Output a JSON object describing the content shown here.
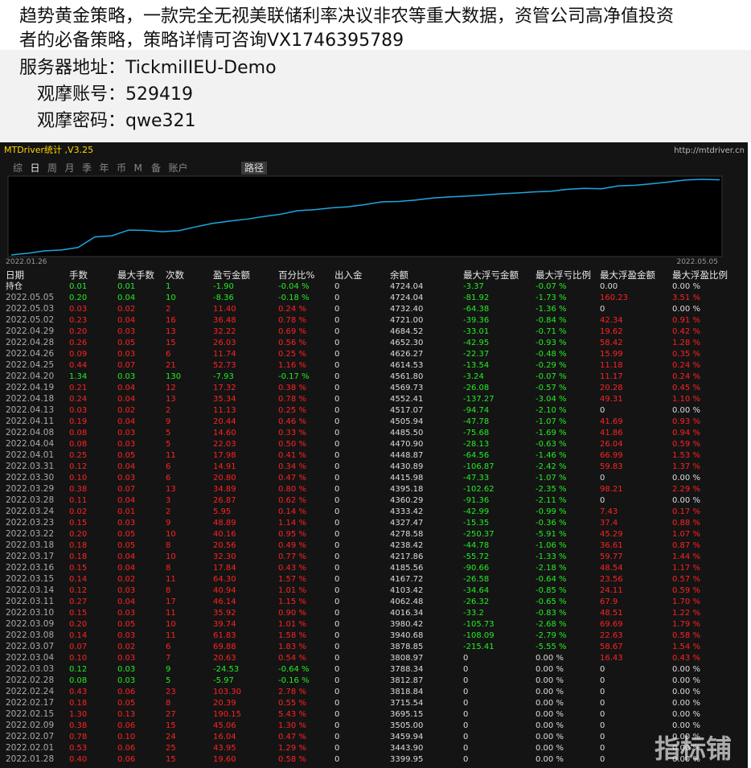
{
  "header": {
    "lines": [
      "趋势黄金策略，一款完全无视美联储利率决议非农等重大数据，资管公司高净值投资",
      "者的必备策略，策略详情可咨询VX1746395789",
      "服务器地址：TickmiIIEU-Demo",
      "观摩账号：529419",
      "观摩密码：qwe321"
    ]
  },
  "panel": {
    "title": "MTDriver统计 ,V3.25",
    "url": "http://mtdriver.cn",
    "tabs": [
      "综",
      "日",
      "周",
      "月",
      "季",
      "年",
      "币",
      "M",
      "备",
      "账户"
    ],
    "active_tab": "路径"
  },
  "chart": {
    "start_label": "2022.01.26",
    "end_label": "2022.05.05"
  },
  "table": {
    "header": [
      "日期",
      "手数",
      "最大手数",
      "次数",
      "盈亏金额",
      "百分比%",
      "出入金",
      "余额",
      "最大浮亏金额",
      "最大浮亏比例",
      "最大浮盈金额",
      "最大浮盈比例"
    ],
    "rows": [
      [
        "持仓",
        "0.01",
        "0.01",
        "1",
        "-1.90",
        "-0.04 %",
        "0",
        "4724.04",
        "-3.37",
        "-0.07 %",
        "0.00",
        "0.00 %"
      ],
      [
        "2022.05.05",
        "0.20",
        "0.04",
        "10",
        "-8.36",
        "-0.18 %",
        "0",
        "4724.04",
        "-81.92",
        "-1.73 %",
        "160.23",
        "3.51 %"
      ],
      [
        "2022.05.03",
        "0.03",
        "0.02",
        "2",
        "11.40",
        "0.24 %",
        "0",
        "4732.40",
        "-64.38",
        "-1.36 %",
        "0",
        "0.00 %"
      ],
      [
        "2022.05.02",
        "0.23",
        "0.04",
        "16",
        "36.48",
        "0.78 %",
        "0",
        "4721.00",
        "-39.36",
        "-0.84 %",
        "42.34",
        "0.91 %"
      ],
      [
        "2022.04.29",
        "0.20",
        "0.03",
        "13",
        "32.22",
        "0.69 %",
        "0",
        "4684.52",
        "-33.01",
        "-0.71 %",
        "19.62",
        "0.42 %"
      ],
      [
        "2022.04.28",
        "0.26",
        "0.05",
        "15",
        "26.03",
        "0.56 %",
        "0",
        "4652.30",
        "-42.95",
        "-0.93 %",
        "58.42",
        "1.28 %"
      ],
      [
        "2022.04.26",
        "0.09",
        "0.03",
        "6",
        "11.74",
        "0.25 %",
        "0",
        "4626.27",
        "-22.37",
        "-0.48 %",
        "15.99",
        "0.35 %"
      ],
      [
        "2022.04.25",
        "0.44",
        "0.07",
        "21",
        "52.73",
        "1.16 %",
        "0",
        "4614.53",
        "-13.54",
        "-0.29 %",
        "11.18",
        "0.24 %"
      ],
      [
        "2022.04.20",
        "1.34",
        "0.03",
        "130",
        "-7.93",
        "-0.17 %",
        "0",
        "4561.80",
        "-3.24",
        "-0.07 %",
        "11.17",
        "0.24 %"
      ],
      [
        "2022.04.19",
        "0.21",
        "0.04",
        "12",
        "17.32",
        "0.38 %",
        "0",
        "4569.73",
        "-26.08",
        "-0.57 %",
        "20.28",
        "0.45 %"
      ],
      [
        "2022.04.18",
        "0.24",
        "0.04",
        "13",
        "35.34",
        "0.78 %",
        "0",
        "4552.41",
        "-137.27",
        "-3.04 %",
        "49.31",
        "1.10 %"
      ],
      [
        "2022.04.13",
        "0.03",
        "0.02",
        "2",
        "11.13",
        "0.25 %",
        "0",
        "4517.07",
        "-94.74",
        "-2.10 %",
        "0",
        "0.00 %"
      ],
      [
        "2022.04.11",
        "0.19",
        "0.04",
        "9",
        "20.44",
        "0.46 %",
        "0",
        "4505.94",
        "-47.78",
        "-1.07 %",
        "41.69",
        "0.93 %"
      ],
      [
        "2022.04.08",
        "0.08",
        "0.03",
        "5",
        "14.60",
        "0.33 %",
        "0",
        "4485.50",
        "-75.68",
        "-1.69 %",
        "41.86",
        "0.94 %"
      ],
      [
        "2022.04.04",
        "0.08",
        "0.03",
        "5",
        "22.03",
        "0.50 %",
        "0",
        "4470.90",
        "-28.13",
        "-0.63 %",
        "26.04",
        "0.59 %"
      ],
      [
        "2022.04.01",
        "0.25",
        "0.05",
        "11",
        "17.98",
        "0.41 %",
        "0",
        "4448.87",
        "-64.56",
        "-1.46 %",
        "66.99",
        "1.53 %"
      ],
      [
        "2022.03.31",
        "0.12",
        "0.04",
        "6",
        "14.91",
        "0.34 %",
        "0",
        "4430.89",
        "-106.87",
        "-2.42 %",
        "59.83",
        "1.37 %"
      ],
      [
        "2022.03.30",
        "0.10",
        "0.03",
        "6",
        "20.80",
        "0.47 %",
        "0",
        "4415.98",
        "-47.33",
        "-1.07 %",
        "0",
        "0.00 %"
      ],
      [
        "2022.03.29",
        "0.38",
        "0.07",
        "13",
        "34.89",
        "0.80 %",
        "0",
        "4395.18",
        "-102.62",
        "-2.35 %",
        "98.21",
        "2.29 %"
      ],
      [
        "2022.03.28",
        "0.11",
        "0.04",
        "3",
        "26.87",
        "0.62 %",
        "0",
        "4360.29",
        "-91.36",
        "-2.11 %",
        "0",
        "0.00 %"
      ],
      [
        "2022.03.24",
        "0.02",
        "0.01",
        "2",
        "5.95",
        "0.14 %",
        "0",
        "4333.42",
        "-42.99",
        "-0.99 %",
        "7.43",
        "0.17 %"
      ],
      [
        "2022.03.23",
        "0.15",
        "0.03",
        "9",
        "48.89",
        "1.14 %",
        "0",
        "4327.47",
        "-15.35",
        "-0.36 %",
        "37.4",
        "0.88 %"
      ],
      [
        "2022.03.22",
        "0.20",
        "0.05",
        "10",
        "40.16",
        "0.95 %",
        "0",
        "4278.58",
        "-250.37",
        "-5.91 %",
        "45.29",
        "1.07 %"
      ],
      [
        "2022.03.18",
        "0.18",
        "0.05",
        "8",
        "20.56",
        "0.49 %",
        "0",
        "4238.42",
        "-44.78",
        "-1.06 %",
        "36.61",
        "0.87 %"
      ],
      [
        "2022.03.17",
        "0.18",
        "0.04",
        "10",
        "32.30",
        "0.77 %",
        "0",
        "4217.86",
        "-55.72",
        "-1.33 %",
        "59.77",
        "1.44 %"
      ],
      [
        "2022.03.16",
        "0.15",
        "0.04",
        "8",
        "17.84",
        "0.43 %",
        "0",
        "4185.56",
        "-90.66",
        "-2.18 %",
        "48.54",
        "1.17 %"
      ],
      [
        "2022.03.15",
        "0.14",
        "0.02",
        "11",
        "64.30",
        "1.57 %",
        "0",
        "4167.72",
        "-26.58",
        "-0.64 %",
        "23.56",
        "0.57 %"
      ],
      [
        "2022.03.14",
        "0.12",
        "0.03",
        "8",
        "40.94",
        "1.01 %",
        "0",
        "4103.42",
        "-34.64",
        "-0.85 %",
        "24.11",
        "0.59 %"
      ],
      [
        "2022.03.11",
        "0.27",
        "0.04",
        "17",
        "46.14",
        "1.15 %",
        "0",
        "4062.48",
        "-26.32",
        "-0.65 %",
        "67.9",
        "1.70 %"
      ],
      [
        "2022.03.10",
        "0.15",
        "0.03",
        "11",
        "35.92",
        "0.90 %",
        "0",
        "4016.34",
        "-33.2",
        "-0.83 %",
        "48.51",
        "1.22 %"
      ],
      [
        "2022.03.09",
        "0.20",
        "0.05",
        "10",
        "39.74",
        "1.01 %",
        "0",
        "3980.42",
        "-105.73",
        "-2.68 %",
        "69.69",
        "1.79 %"
      ],
      [
        "2022.03.08",
        "0.14",
        "0.03",
        "11",
        "61.83",
        "1.58 %",
        "0",
        "3940.68",
        "-108.09",
        "-2.79 %",
        "22.63",
        "0.58 %"
      ],
      [
        "2022.03.07",
        "0.07",
        "0.02",
        "6",
        "69.88",
        "1.83 %",
        "0",
        "3878.85",
        "-215.41",
        "-5.55 %",
        "58.67",
        "1.54 %"
      ],
      [
        "2022.03.04",
        "0.10",
        "0.03",
        "7",
        "20.63",
        "0.54 %",
        "0",
        "3808.97",
        "0",
        "0.00 %",
        "16.43",
        "0.43 %"
      ],
      [
        "2022.03.03",
        "0.12",
        "0.03",
        "9",
        "-24.53",
        "-0.64 %",
        "0",
        "3788.34",
        "0",
        "0.00 %",
        "0",
        "0.00 %"
      ],
      [
        "2022.02.28",
        "0.08",
        "0.03",
        "5",
        "-5.97",
        "-0.16 %",
        "0",
        "3812.87",
        "0",
        "0.00 %",
        "0",
        "0.00 %"
      ],
      [
        "2022.02.24",
        "0.43",
        "0.06",
        "23",
        "103.30",
        "2.78 %",
        "0",
        "3818.84",
        "0",
        "0.00 %",
        "0",
        "0.00 %"
      ],
      [
        "2022.02.17",
        "0.18",
        "0.05",
        "8",
        "20.39",
        "0.55 %",
        "0",
        "3715.54",
        "0",
        "0.00 %",
        "0",
        "0.00 %"
      ],
      [
        "2022.02.15",
        "1.30",
        "0.13",
        "27",
        "190.15",
        "5.43 %",
        "0",
        "3695.15",
        "0",
        "0.00 %",
        "0",
        "0.00 %"
      ],
      [
        "2022.02.09",
        "0.38",
        "0.06",
        "15",
        "45.06",
        "1.30 %",
        "0",
        "3505.00",
        "0",
        "0.00 %",
        "0",
        "0.00 %"
      ],
      [
        "2022.02.07",
        "0.78",
        "0.10",
        "24",
        "16.04",
        "0.47 %",
        "0",
        "3459.94",
        "0",
        "0.00 %",
        "0",
        "0.00 %"
      ],
      [
        "2022.02.01",
        "0.53",
        "0.06",
        "25",
        "43.95",
        "1.29 %",
        "0",
        "3443.90",
        "0",
        "0.00 %",
        "0",
        "0.00 %"
      ],
      [
        "2022.01.28",
        "0.40",
        "0.06",
        "15",
        "19.60",
        "0.58 %",
        "0",
        "3399.95",
        "0",
        "0.00 %",
        "0",
        "0.00 %"
      ]
    ]
  },
  "watermark": "指标铺"
}
